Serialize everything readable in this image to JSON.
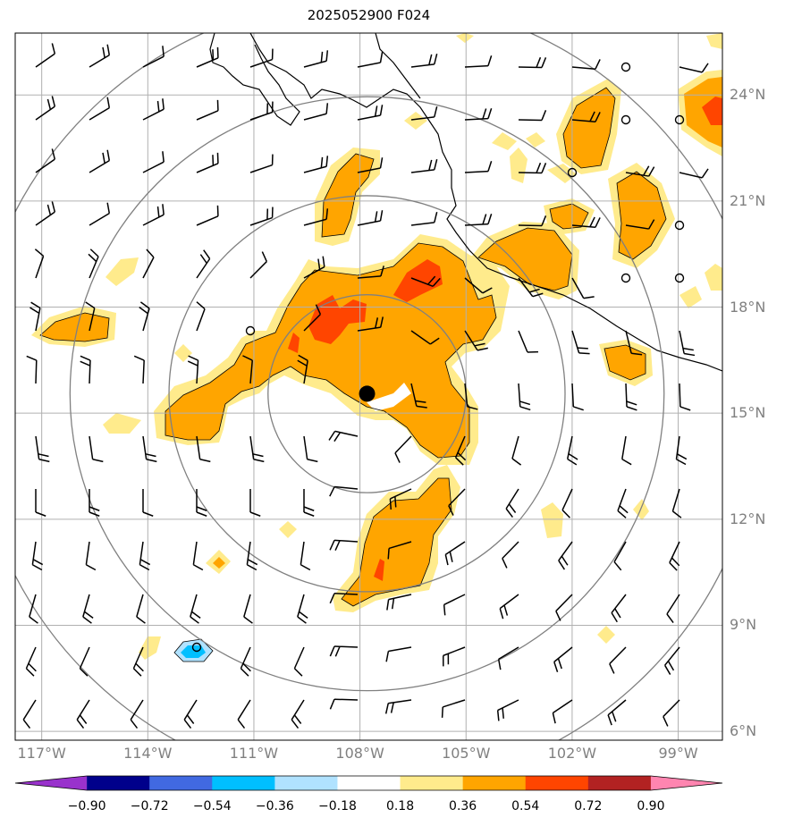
{
  "title": "2025052900 F024",
  "map": {
    "projection_extent": {
      "lon_min": -117.75,
      "lon_max": -97.75,
      "lat_min": 5.75,
      "lat_max": 25.75
    },
    "center_marker": {
      "lon": -107.8,
      "lat": 15.55
    },
    "range_rings_deg": [
      2.8,
      5.6,
      8.4,
      11.2
    ],
    "grid_color": "#b0b0b0",
    "coastline_color": "#000000"
  },
  "axes": {
    "lat_labels": [
      {
        "lat": 24,
        "text": "24°N"
      },
      {
        "lat": 21,
        "text": "21°N"
      },
      {
        "lat": 18,
        "text": "18°N"
      },
      {
        "lat": 15,
        "text": "15°N"
      },
      {
        "lat": 12,
        "text": "12°N"
      },
      {
        "lat": 9,
        "text": "9°N"
      },
      {
        "lat": 6,
        "text": "6°N"
      }
    ],
    "lon_labels": [
      {
        "lon": -117,
        "text": "117°W"
      },
      {
        "lon": -114,
        "text": "114°W"
      },
      {
        "lon": -111,
        "text": "111°W"
      },
      {
        "lon": -108,
        "text": "108°W"
      },
      {
        "lon": -105,
        "text": "105°W"
      },
      {
        "lon": -102,
        "text": "102°W"
      },
      {
        "lon": -99,
        "text": "99°W"
      }
    ]
  },
  "colorbar": {
    "levels": [
      "−0.90",
      "−0.72",
      "−0.54",
      "−0.36",
      "−0.18",
      "0.18",
      "0.36",
      "0.54",
      "0.72",
      "0.90"
    ],
    "colors": [
      "#9932cc",
      "#00008b",
      "#4169e1",
      "#00bfff",
      "#b0e2ff",
      "#ffffff",
      "#ffeb8c",
      "#ffa500",
      "#ff4500",
      "#b22222",
      "#ff85b0"
    ]
  },
  "field_colors": {
    "c1": "#ffeb8c",
    "c2": "#ffa500",
    "c3": "#ff4500",
    "neg": "#00bfff",
    "neg_light": "#b0e2ff"
  }
}
